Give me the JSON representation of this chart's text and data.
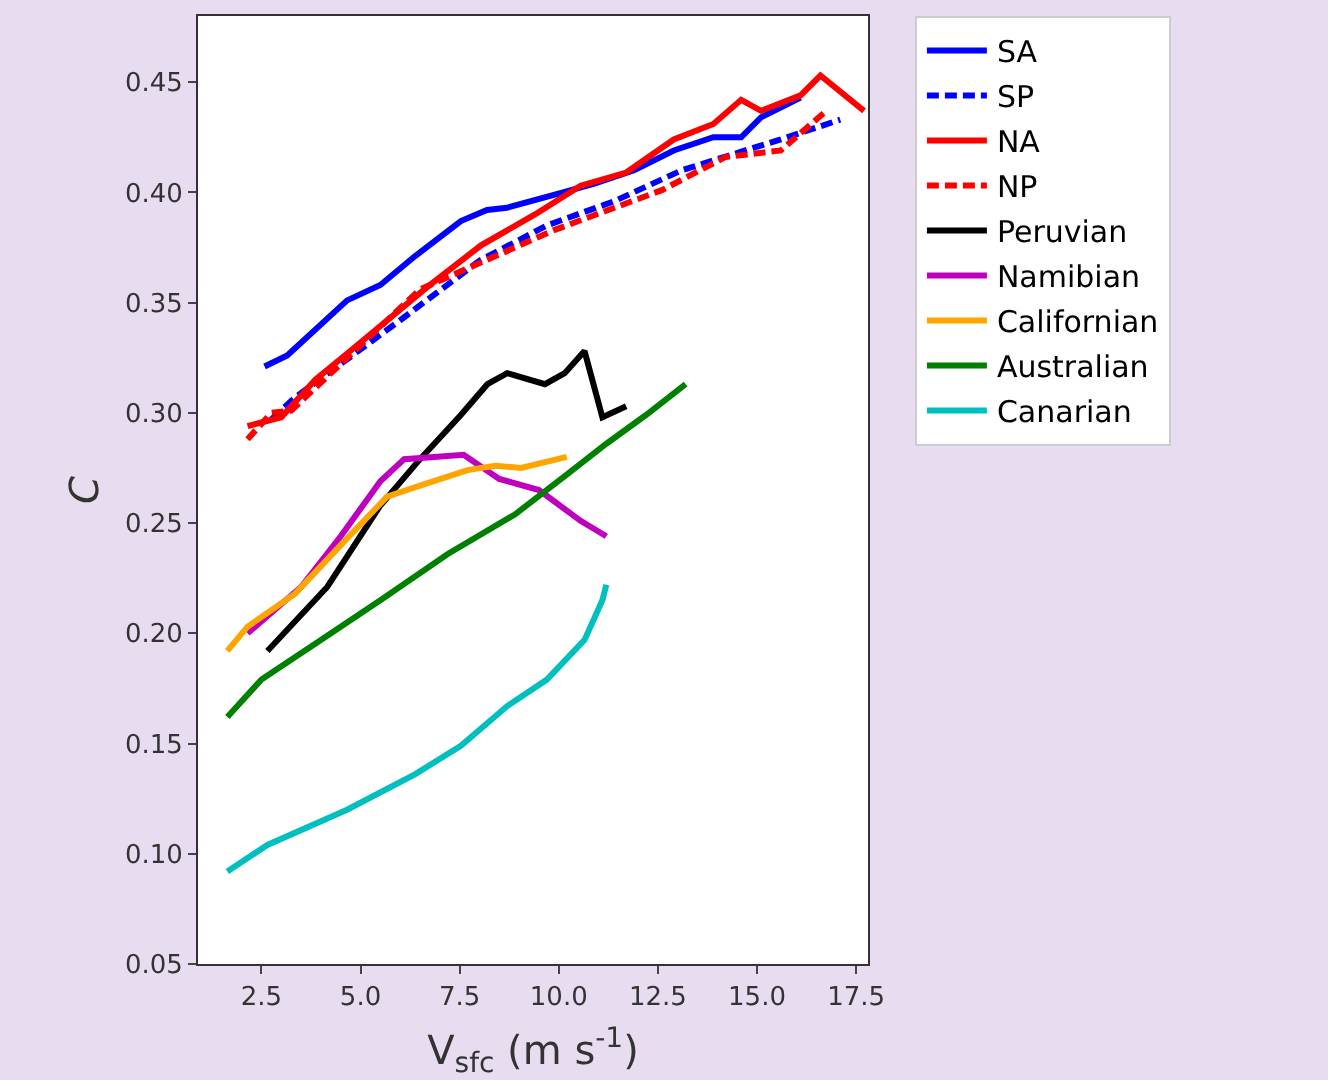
{
  "chart_data": {
    "type": "line",
    "xlabel": "V$_{sfc}$ (m s$^{-1}$)",
    "ylabel": "C",
    "xlim": [
      0.9,
      17.8
    ],
    "xticks": [
      {
        "value": 2.5,
        "label": "2.5"
      },
      {
        "value": 5,
        "label": "5.0"
      },
      {
        "value": 7.5,
        "label": "7.5"
      },
      {
        "value": 10,
        "label": "10.0"
      },
      {
        "value": 12.5,
        "label": "12.5"
      },
      {
        "value": 15,
        "label": "15.0"
      },
      {
        "value": 17.5,
        "label": "17.5"
      }
    ],
    "ylim": [
      0.05,
      0.48
    ],
    "yticks": [
      {
        "value": 0.05,
        "label": "0.05"
      },
      {
        "value": 0.1,
        "label": "0.10"
      },
      {
        "value": 0.15,
        "label": "0.15"
      },
      {
        "value": 0.2,
        "label": "0.20"
      },
      {
        "value": 0.25,
        "label": "0.25"
      },
      {
        "value": 0.3,
        "label": "0.30"
      },
      {
        "value": 0.35,
        "label": "0.35"
      },
      {
        "value": 0.4,
        "label": "0.40"
      },
      {
        "value": 0.45,
        "label": "0.45"
      }
    ],
    "grid": false,
    "legend": "right",
    "marker": "none",
    "series": [
      {
        "name": "SA",
        "color": "#0000ff",
        "line_style": "solid",
        "x": [
          2.58,
          3.15,
          4.66,
          5.5,
          6.37,
          7.53,
          8.19,
          8.69,
          9.9,
          10.9,
          11.9,
          12.9,
          13.9,
          14.6,
          15.1,
          16.1
        ],
        "values": [
          0.321,
          0.326,
          0.351,
          0.358,
          0.371,
          0.387,
          0.392,
          0.393,
          0.399,
          0.404,
          0.41,
          0.419,
          0.425,
          0.425,
          0.434,
          0.443
        ]
      },
      {
        "name": "SP",
        "color": "#0000ff",
        "line_style": "dashed",
        "x": [
          2.75,
          3.35,
          6.0,
          8.0,
          9.7,
          11.4,
          13.1,
          14.7,
          15.6,
          17.1
        ],
        "values": [
          0.297,
          0.307,
          0.342,
          0.369,
          0.385,
          0.396,
          0.41,
          0.419,
          0.424,
          0.433
        ]
      },
      {
        "name": "NA",
        "color": "#ff0000",
        "line_style": "solid",
        "x": [
          2.15,
          3.0,
          3.86,
          4.87,
          6.68,
          8.04,
          9.4,
          10.55,
          11.7,
          12.9,
          13.9,
          14.6,
          15.1,
          16.1,
          16.6,
          17.7
        ],
        "values": [
          0.294,
          0.298,
          0.315,
          0.33,
          0.357,
          0.376,
          0.39,
          0.403,
          0.409,
          0.424,
          0.431,
          0.442,
          0.437,
          0.444,
          0.453,
          0.437
        ]
      },
      {
        "name": "NP",
        "color": "#ff0000",
        "line_style": "dashed",
        "x": [
          2.15,
          2.75,
          3.25,
          6.5,
          9.9,
          12.6,
          14.2,
          15.6,
          16.75
        ],
        "values": [
          0.288,
          0.3,
          0.301,
          0.356,
          0.383,
          0.401,
          0.416,
          0.419,
          0.437
        ]
      },
      {
        "name": "Peruvian",
        "color": "#000000",
        "line_style": "solid",
        "x": [
          2.65,
          4.16,
          5.5,
          6.5,
          7.53,
          8.2,
          8.7,
          9.65,
          10.15,
          10.65,
          11.1,
          11.7
        ],
        "values": [
          0.192,
          0.221,
          0.258,
          0.279,
          0.299,
          0.313,
          0.318,
          0.313,
          0.318,
          0.328,
          0.298,
          0.303
        ]
      },
      {
        "name": "Namibian",
        "color": "#bf00bf",
        "line_style": "solid",
        "x": [
          2.15,
          3.5,
          4.5,
          5.5,
          6.1,
          7.6,
          8.5,
          9.5,
          10.55,
          11.2
        ],
        "values": [
          0.2,
          0.221,
          0.244,
          0.269,
          0.279,
          0.281,
          0.27,
          0.265,
          0.251,
          0.244
        ]
      },
      {
        "name": "Californian",
        "color": "#ffa500",
        "line_style": "solid",
        "x": [
          1.64,
          2.15,
          3.35,
          4.5,
          5.67,
          6.5,
          7.7,
          8.4,
          9.05,
          10.2
        ],
        "values": [
          0.192,
          0.203,
          0.218,
          0.24,
          0.262,
          0.267,
          0.274,
          0.276,
          0.275,
          0.28
        ]
      },
      {
        "name": "Australian",
        "color": "#008000",
        "line_style": "solid",
        "x": [
          1.64,
          2.5,
          4.0,
          5.5,
          7.2,
          8.9,
          10.2,
          11.2,
          12.2,
          13.2
        ],
        "values": [
          0.162,
          0.179,
          0.197,
          0.215,
          0.236,
          0.254,
          0.272,
          0.286,
          0.299,
          0.313
        ]
      },
      {
        "name": "Canarian",
        "color": "#00bfbf",
        "line_style": "solid",
        "x": [
          1.64,
          2.65,
          4.66,
          6.37,
          7.53,
          8.7,
          9.7,
          10.65,
          11.1,
          11.2
        ],
        "values": [
          0.092,
          0.104,
          0.12,
          0.136,
          0.149,
          0.167,
          0.179,
          0.197,
          0.215,
          0.222
        ]
      }
    ]
  }
}
